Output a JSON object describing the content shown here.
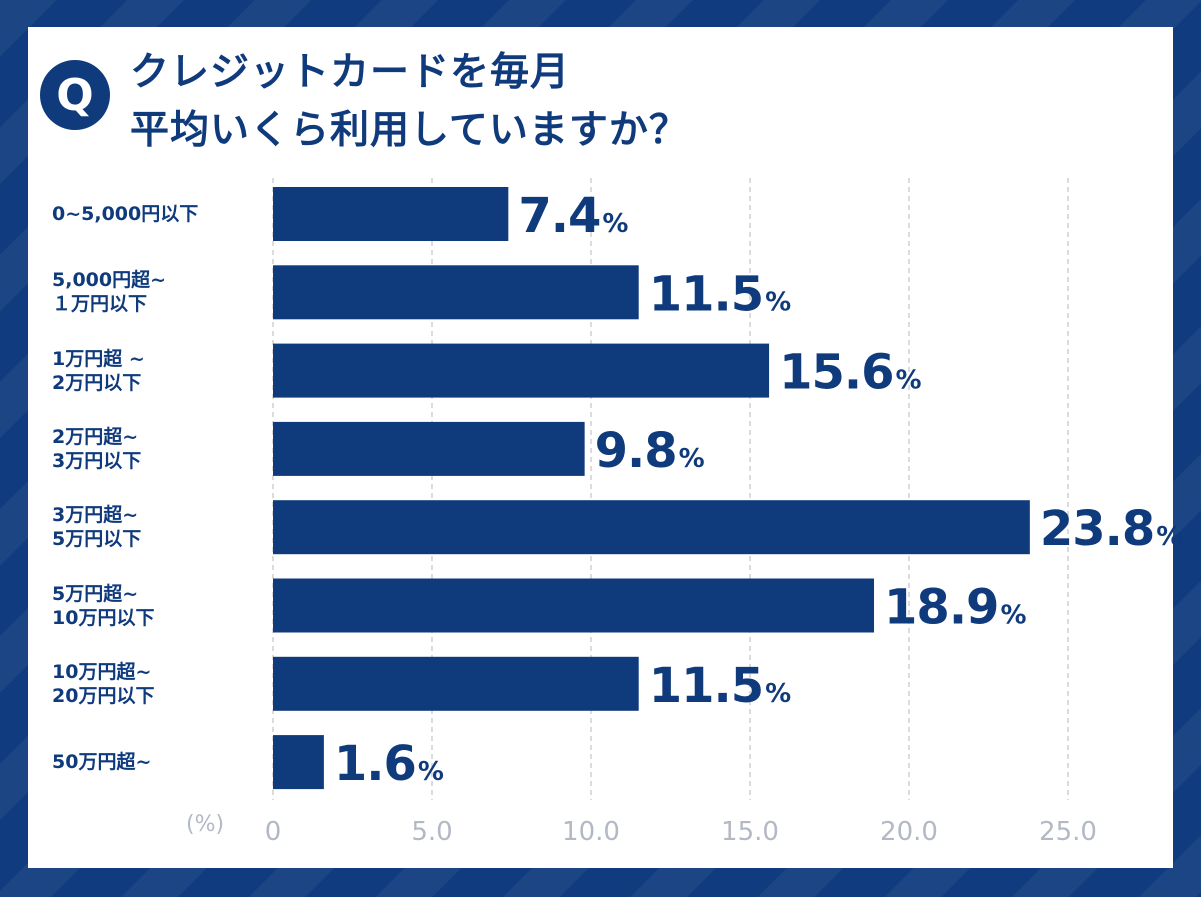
{
  "question": {
    "badge": "Q",
    "line1": "クレジットカードを毎月",
    "line2": "平均いくら利用していますか？"
  },
  "colors": {
    "bar": "#0f3a7c",
    "grid": "#c8c8c8",
    "tick": "#b3b9c4",
    "frame": "#103b7e"
  },
  "chart_data": {
    "type": "bar",
    "orientation": "horizontal",
    "categories": [
      [
        "0~5,000円以下"
      ],
      [
        "5,000円超~",
        "１万円以下"
      ],
      [
        "1万円超 ~",
        "2万円以下"
      ],
      [
        "2万円超~",
        "3万円以下"
      ],
      [
        "3万円超~",
        "5万円以下"
      ],
      [
        "5万円超~",
        "10万円以下"
      ],
      [
        "10万円超~",
        "20万円以下"
      ],
      [
        "50万円超~"
      ]
    ],
    "values": [
      7.4,
      11.5,
      15.6,
      9.8,
      23.8,
      18.9,
      11.5,
      1.6
    ],
    "value_labels": [
      "7.4",
      "11.5",
      "15.6",
      "9.8",
      "23.8",
      "18.9",
      "11.5",
      "1.6"
    ],
    "value_suffix": "%",
    "xlim": [
      0,
      25
    ],
    "xticks": [
      "0",
      "5.0",
      "10.0",
      "15.0",
      "20.0",
      "25.0"
    ],
    "xunit": "(%)",
    "grid": true
  }
}
